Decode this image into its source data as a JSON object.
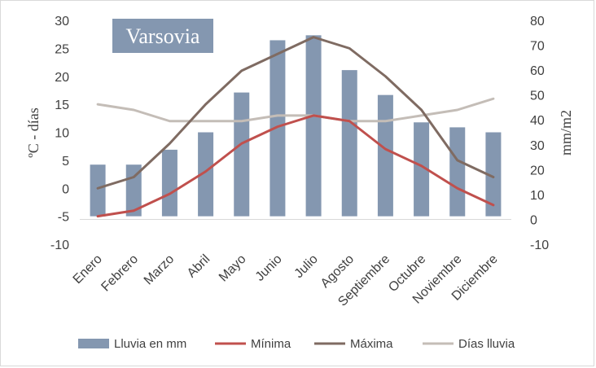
{
  "chart_data": {
    "type": "bar+line",
    "title": "Varsovia",
    "badge_color": "#8497b0",
    "categories": [
      "Enero",
      "Febrero",
      "Marzo",
      "Abril",
      "Mayo",
      "Junio",
      "Julio",
      "Agosto",
      "Septiembre",
      "Octubre",
      "Noviembre",
      "Diciembre"
    ],
    "ylabel_left": "ºC - días",
    "ylabel_right": "mm/m2",
    "ylim_left": [
      -10,
      30
    ],
    "ylim_right": [
      -10,
      80
    ],
    "yticks_left": [
      -10,
      -5,
      0,
      5,
      10,
      15,
      20,
      25,
      30
    ],
    "yticks_right": [
      -10,
      0,
      10,
      20,
      30,
      40,
      50,
      60,
      70,
      80
    ],
    "grid": false,
    "legend_position": "bottom",
    "series": [
      {
        "name": "Lluvia en mm",
        "type": "bar",
        "axis": "right",
        "color": "#8497b0",
        "values": [
          22,
          22,
          28,
          35,
          51,
          72,
          74,
          60,
          50,
          39,
          37,
          35
        ]
      },
      {
        "name": "Mínima",
        "type": "line",
        "axis": "left",
        "color": "#c0504d",
        "values": [
          -5,
          -4,
          -1,
          3,
          8,
          11,
          13,
          12,
          7,
          4,
          0,
          -3
        ]
      },
      {
        "name": "Máxima",
        "type": "line",
        "axis": "left",
        "color": "#7f6b62",
        "values": [
          0,
          2,
          8,
          15,
          21,
          24,
          27,
          25,
          20,
          14,
          5,
          2
        ]
      },
      {
        "name": "Días lluvia",
        "type": "line",
        "axis": "left",
        "color": "#c4bdb7",
        "values": [
          15,
          14,
          12,
          12,
          12,
          13,
          13,
          12,
          12,
          13,
          14,
          16
        ]
      }
    ]
  }
}
